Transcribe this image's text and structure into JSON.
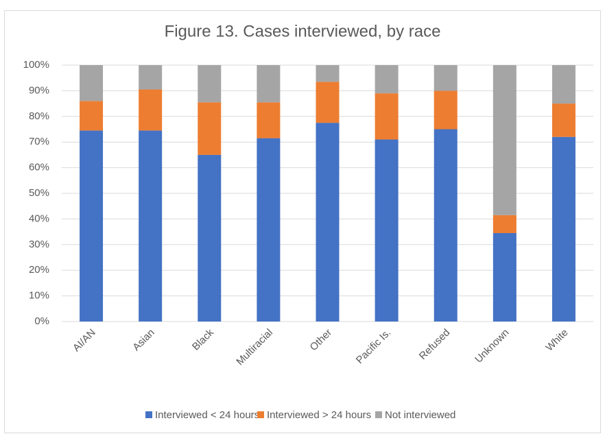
{
  "chart_data": {
    "type": "stacked_bar",
    "title": "Figure 13. Cases interviewed, by race",
    "categories": [
      "AI/AN",
      "Asian",
      "Black",
      "Multiracial",
      "Other",
      "Pacific Is.",
      "Refused",
      "Unknown",
      "White"
    ],
    "series": [
      {
        "name": "Interviewed < 24 hours",
        "color": "#4472c4",
        "values": [
          74.5,
          74.5,
          65,
          71.5,
          77.5,
          71,
          75,
          34.5,
          72
        ]
      },
      {
        "name": "Interviewed > 24 hours",
        "color": "#ed7d31",
        "values": [
          11.5,
          16,
          20.5,
          14,
          16,
          18,
          15,
          7,
          13
        ]
      },
      {
        "name": "Not interviewed",
        "color": "#a5a5a5",
        "values": [
          14,
          9.5,
          14.5,
          14.5,
          6.5,
          11,
          10,
          58.5,
          15
        ]
      }
    ],
    "ylim": [
      0,
      100
    ],
    "yticks": [
      {
        "value": 0,
        "label": "0%"
      },
      {
        "value": 10,
        "label": "10%"
      },
      {
        "value": 20,
        "label": "20%"
      },
      {
        "value": 30,
        "label": "30%"
      },
      {
        "value": 40,
        "label": "40%"
      },
      {
        "value": 50,
        "label": "50%"
      },
      {
        "value": 60,
        "label": "60%"
      },
      {
        "value": 70,
        "label": "70%"
      },
      {
        "value": 80,
        "label": "80%"
      },
      {
        "value": 90,
        "label": "90%"
      },
      {
        "value": 100,
        "label": "100%"
      }
    ],
    "grid": true,
    "legend": "bottom"
  }
}
